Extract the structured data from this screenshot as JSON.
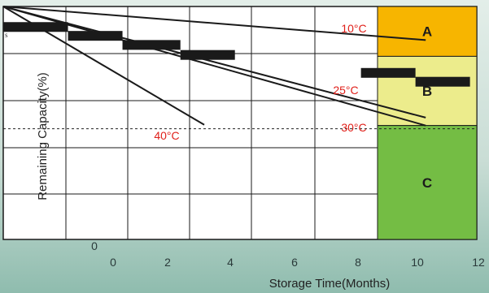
{
  "chart_data": {
    "type": "line",
    "title": "",
    "xlabel": "Storage Time(Months)",
    "ylabel": "Remaining Capacity(%)",
    "x_ticks": [
      "0",
      "2",
      "4",
      "6",
      "8",
      "10",
      "12"
    ],
    "y_ticks": [
      "0"
    ],
    "corner_mark": "s",
    "xlim": [
      -1.9,
      12
    ],
    "ylim": [
      0,
      100
    ],
    "grid": true,
    "series": [
      {
        "name": "10°C",
        "x": [
          -1.9,
          10.5
        ],
        "y": [
          100,
          85.6
        ]
      },
      {
        "name": "25°C",
        "x": [
          -1.9,
          10.5
        ],
        "y": [
          100,
          52.3
        ]
      },
      {
        "name": "30°C",
        "x": [
          -1.9,
          10.5
        ],
        "y": [
          100,
          48.9
        ]
      },
      {
        "name": "40°C",
        "x": [
          -1.9,
          4.0
        ],
        "y": [
          100,
          49.2
        ]
      }
    ],
    "bars": [
      {
        "x0": -1.9,
        "x1": 0.0,
        "y": 91.2
      },
      {
        "x0": 0.0,
        "x1": 1.6,
        "y": 87.4
      },
      {
        "x0": 1.6,
        "x1": 3.3,
        "y": 83.5
      },
      {
        "x0": 3.3,
        "x1": 4.9,
        "y": 79.2
      },
      {
        "x0": 8.6,
        "x1": 10.2,
        "y": 71.5
      },
      {
        "x0": 10.2,
        "x1": 11.8,
        "y": 67.7
      }
    ],
    "reference_line": {
      "y": 47.5,
      "style": "dashed"
    },
    "zones": [
      {
        "label": "A",
        "y_from": 78.6,
        "y_to": 100,
        "color": "#f7b500"
      },
      {
        "label": "B",
        "y_from": 48.9,
        "y_to": 78.6,
        "color": "#ecec8c"
      },
      {
        "label": "C",
        "y_from": 0,
        "y_to": 48.9,
        "color": "#74bd44"
      }
    ]
  }
}
